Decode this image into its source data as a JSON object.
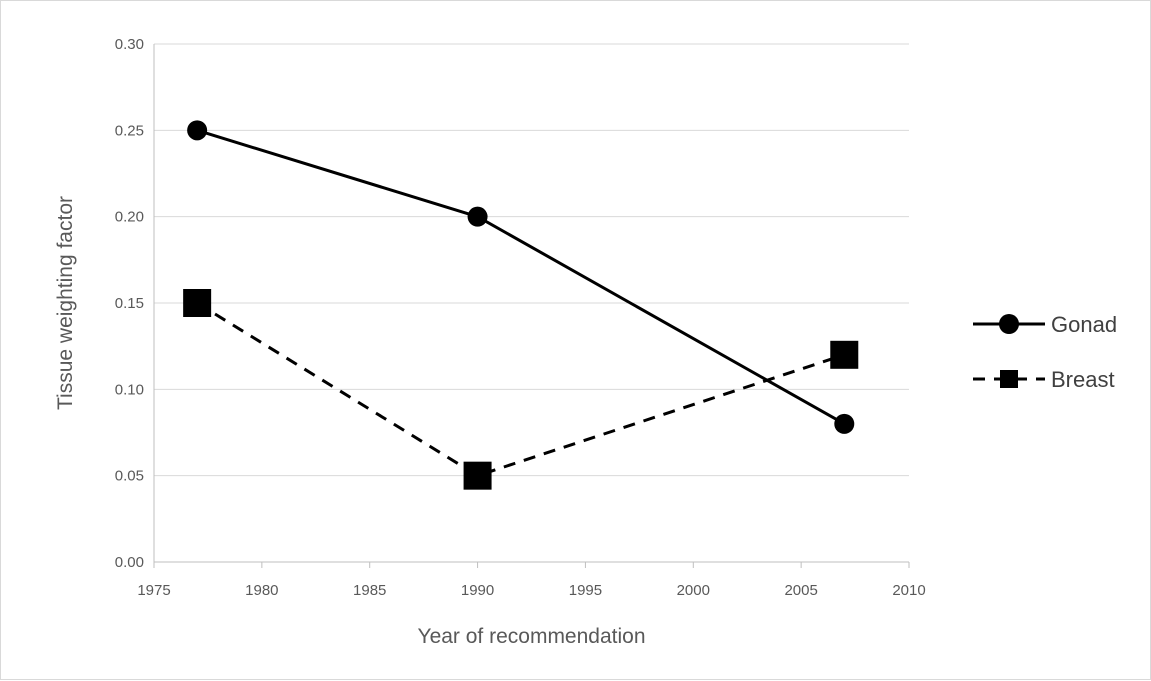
{
  "chart_data": {
    "type": "line",
    "title": "",
    "xlabel": "Year of recommendation",
    "ylabel": "Tissue weighting factor",
    "xlim": [
      1975,
      2010
    ],
    "ylim": [
      0,
      0.3
    ],
    "x_ticks": [
      "1975",
      "1980",
      "1985",
      "1990",
      "1995",
      "2000",
      "2005",
      "2010"
    ],
    "y_ticks": [
      "0.00",
      "0.05",
      "0.10",
      "0.15",
      "0.20",
      "0.25",
      "0.30"
    ],
    "grid": true,
    "legend_position": "right",
    "series": [
      {
        "name": "Gonad",
        "x": [
          1977,
          1990,
          2007
        ],
        "y": [
          0.25,
          0.2,
          0.08
        ],
        "line_style": "solid",
        "marker": "circle",
        "color": "#000000"
      },
      {
        "name": "Breast",
        "x": [
          1977,
          1990,
          2007
        ],
        "y": [
          0.15,
          0.05,
          0.12
        ],
        "line_style": "dashed",
        "marker": "square",
        "color": "#000000"
      }
    ]
  },
  "colors": {
    "gridline": "#d9d9d9",
    "axis": "#bfbfbf",
    "text": "#595959"
  }
}
